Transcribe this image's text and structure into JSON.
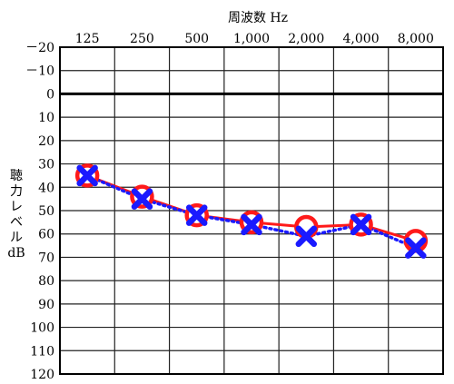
{
  "chart_data": {
    "type": "line",
    "title": "",
    "xlabel": "周波数 Hz",
    "ylabel_lines": [
      "聴",
      "力",
      "レ",
      "ベ",
      "ル",
      "dB"
    ],
    "categories": [
      "125",
      "250",
      "500",
      "1,000",
      "2,000",
      "4,000",
      "8,000"
    ],
    "y_ticks": [
      "－20",
      "－10",
      "0",
      "10",
      "20",
      "30",
      "40",
      "50",
      "60",
      "70",
      "80",
      "90",
      "100",
      "110",
      "120"
    ],
    "ylim": [
      -20,
      120
    ],
    "y_inverted": true,
    "reference_line": 0,
    "grid": true,
    "series": [
      {
        "marker": "circle",
        "line_style": "solid",
        "color": "#ff1a1a",
        "values": [
          35,
          44,
          52,
          55,
          57,
          56,
          63
        ]
      },
      {
        "marker": "x",
        "line_style": "dotted",
        "color": "#1a1aff",
        "values": [
          35,
          45,
          52,
          56,
          61,
          56,
          66
        ]
      }
    ]
  }
}
